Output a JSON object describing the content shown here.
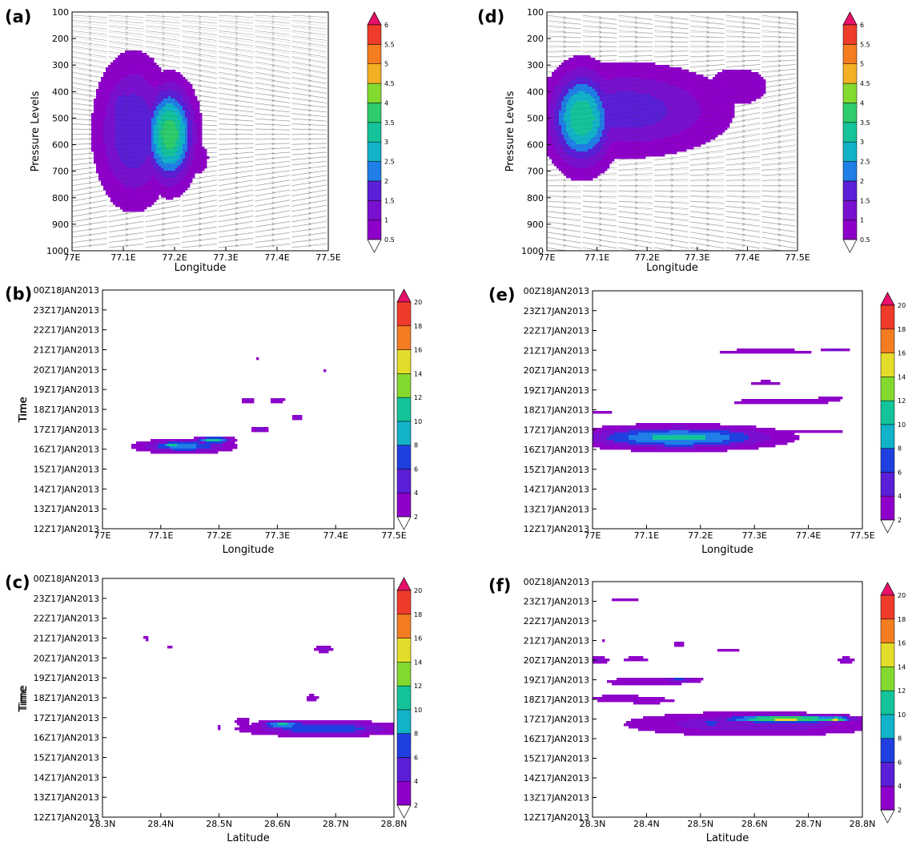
{
  "colors": {
    "contour_scale": [
      "#8e00c9",
      "#7a10cf",
      "#5a1fd6",
      "#1f3fe0",
      "#1f7fe6",
      "#12b2c9",
      "#14c39a",
      "#2fcc6b",
      "#84d92e",
      "#e3dc2a",
      "#f4b024",
      "#f47c21",
      "#ee3b2a",
      "#e8106a"
    ],
    "streamline": "#222222"
  },
  "chart_data": [
    {
      "panel": "(a)",
      "type": "heatmap",
      "xlabel": "Longitude",
      "ylabel": "Pressure Levels",
      "xticks": [
        "77E",
        "77.1E",
        "77.2E",
        "77.3E",
        "77.4E",
        "77.5E"
      ],
      "yticks": [
        "100",
        "200",
        "300",
        "400",
        "500",
        "600",
        "700",
        "800",
        "900",
        "1000"
      ],
      "xlim": [
        77.0,
        77.5
      ],
      "ylim": [
        1000,
        100
      ],
      "colorbar_ticks": [
        "0.5",
        "1",
        "1.5",
        "2",
        "2.5",
        "3",
        "3.5",
        "4",
        "4.5",
        "5",
        "5.5",
        "6"
      ],
      "overlay": "streamlines",
      "blobs": [
        {
          "x": 77.12,
          "y": 550,
          "sx": 0.07,
          "sy": 260,
          "peak": 2.0
        },
        {
          "x": 77.19,
          "y": 560,
          "sx": 0.045,
          "sy": 170,
          "peak": 3.9
        },
        {
          "x": 77.1,
          "y": 470,
          "sx": 0.03,
          "sy": 110,
          "peak": 2.0
        },
        {
          "x": 77.24,
          "y": 650,
          "sx": 0.03,
          "sy": 70,
          "peak": 1.0
        }
      ]
    },
    {
      "panel": "(b)",
      "type": "heatmap",
      "xlabel": "Longitude",
      "ylabel": "Time",
      "xticks": [
        "77E",
        "77.1E",
        "77.2E",
        "77.3E",
        "77.4E",
        "77.5E"
      ],
      "yticks": [
        "12Z17JAN2013",
        "13Z17JAN2013",
        "14Z17JAN2013",
        "15Z17JAN2013",
        "16Z17JAN2013",
        "17Z17JAN2013",
        "18Z17JAN2013",
        "19Z17JAN2013",
        "20Z17JAN2013",
        "21Z17JAN2013",
        "22Z17JAN2013",
        "23Z17JAN2013",
        "00Z18JAN2013"
      ],
      "xlim": [
        77.0,
        77.5
      ],
      "ylim": [
        0,
        12
      ],
      "colorbar_ticks": [
        "2",
        "4",
        "6",
        "8",
        "10",
        "12",
        "14",
        "16",
        "18",
        "20"
      ],
      "blobs": [
        {
          "x": 77.14,
          "y": 4.15,
          "sx": 0.075,
          "sy": 0.32,
          "peak": 9.0
        },
        {
          "x": 77.12,
          "y": 4.2,
          "sx": 0.02,
          "sy": 0.2,
          "peak": 12.0
        },
        {
          "x": 77.19,
          "y": 4.45,
          "sx": 0.03,
          "sy": 0.18,
          "peak": 12.0
        },
        {
          "x": 77.27,
          "y": 5.0,
          "sx": 0.015,
          "sy": 0.18,
          "peak": 5.0
        },
        {
          "x": 77.25,
          "y": 6.45,
          "sx": 0.013,
          "sy": 0.14,
          "peak": 5.0
        },
        {
          "x": 77.3,
          "y": 6.45,
          "sx": 0.013,
          "sy": 0.14,
          "peak": 5.0
        },
        {
          "x": 77.335,
          "y": 5.6,
          "sx": 0.009,
          "sy": 0.15,
          "peak": 5.0
        },
        {
          "x": 77.265,
          "y": 8.5,
          "sx": 0.007,
          "sy": 0.1,
          "peak": 3.0
        },
        {
          "x": 77.38,
          "y": 8.0,
          "sx": 0.007,
          "sy": 0.09,
          "peak": 3.0
        }
      ]
    },
    {
      "panel": "(c)",
      "type": "heatmap",
      "xlabel": "Latitude",
      "ylabel": "Time",
      "xticks": [
        "28.3N",
        "28.4N",
        "28.5N",
        "28.6N",
        "28.7N",
        "28.8N"
      ],
      "yticks": [
        "12Z17JAN2013",
        "13Z17JAN2013",
        "14Z17JAN2013",
        "15Z17JAN2013",
        "16Z17JAN2013",
        "17Z17JAN2013",
        "18Z17JAN2013",
        "19Z17JAN2013",
        "20Z17JAN2013",
        "21Z17JAN2013",
        "22Z17JAN2013",
        "23Z17JAN2013",
        "00Z18JAN2013"
      ],
      "xlim": [
        28.3,
        28.8
      ],
      "ylim": [
        0,
        12
      ],
      "colorbar_ticks": [
        "2",
        "4",
        "6",
        "8",
        "10",
        "12",
        "14",
        "16",
        "18",
        "20"
      ],
      "blobs": [
        {
          "x": 28.68,
          "y": 4.45,
          "sx": 0.13,
          "sy": 0.36,
          "peak": 8.0
        },
        {
          "x": 28.61,
          "y": 4.65,
          "sx": 0.04,
          "sy": 0.2,
          "peak": 11.0
        },
        {
          "x": 28.54,
          "y": 4.8,
          "sx": 0.015,
          "sy": 0.25,
          "peak": 4.0
        },
        {
          "x": 28.5,
          "y": 4.5,
          "sx": 0.008,
          "sy": 0.15,
          "peak": 2.5
        },
        {
          "x": 28.66,
          "y": 6.0,
          "sx": 0.013,
          "sy": 0.18,
          "peak": 4.0
        },
        {
          "x": 28.68,
          "y": 8.45,
          "sx": 0.017,
          "sy": 0.16,
          "peak": 5.0
        },
        {
          "x": 28.375,
          "y": 9.0,
          "sx": 0.008,
          "sy": 0.15,
          "peak": 3.0
        },
        {
          "x": 28.415,
          "y": 8.6,
          "sx": 0.008,
          "sy": 0.12,
          "peak": 3.0
        }
      ]
    },
    {
      "panel": "(d)",
      "type": "heatmap",
      "xlabel": "Longitude",
      "ylabel": "Pressure Levels",
      "xticks": [
        "77E",
        "77.1E",
        "77.2E",
        "77.3E",
        "77.4E",
        "77.5E"
      ],
      "yticks": [
        "100",
        "200",
        "300",
        "400",
        "500",
        "600",
        "700",
        "800",
        "900",
        "1000"
      ],
      "xlim": [
        77.0,
        77.5
      ],
      "ylim": [
        1000,
        100
      ],
      "colorbar_ticks": [
        "0.5",
        "1",
        "1.5",
        "2",
        "2.5",
        "3",
        "3.5",
        "4",
        "4.5",
        "5",
        "5.5",
        "6"
      ],
      "overlay": "streamlines",
      "blobs": [
        {
          "x": 77.16,
          "y": 470,
          "sx": 0.19,
          "sy": 160,
          "peak": 1.8
        },
        {
          "x": 77.38,
          "y": 380,
          "sx": 0.07,
          "sy": 80,
          "peak": 1.0
        },
        {
          "x": 77.07,
          "y": 500,
          "sx": 0.06,
          "sy": 170,
          "peak": 3.5
        },
        {
          "x": 77.05,
          "y": 460,
          "sx": 0.02,
          "sy": 80,
          "peak": 3.0
        },
        {
          "x": 77.11,
          "y": 480,
          "sx": 0.03,
          "sy": 100,
          "peak": 1.5
        }
      ]
    },
    {
      "panel": "(e)",
      "type": "heatmap",
      "xlabel": "Longitude",
      "ylabel": "Time",
      "xticks": [
        "77E",
        "77.1E",
        "77.2E",
        "77.3E",
        "77.4E",
        "77.5E"
      ],
      "yticks": [
        "12Z17JAN2013",
        "13Z17JAN2013",
        "14Z17JAN2013",
        "15Z17JAN2013",
        "16Z17JAN2013",
        "17Z17JAN2013",
        "18Z17JAN2013",
        "19Z17JAN2013",
        "20Z17JAN2013",
        "21Z17JAN2013",
        "22Z17JAN2013",
        "23Z17JAN2013",
        "00Z18JAN2013"
      ],
      "xlim": [
        77.0,
        77.5
      ],
      "ylim": [
        0,
        12
      ],
      "colorbar_ticks": [
        "2",
        "4",
        "6",
        "8",
        "10",
        "12",
        "14",
        "16",
        "18",
        "20"
      ],
      "blobs": [
        {
          "x": 77.16,
          "y": 4.6,
          "sx": 0.17,
          "sy": 0.55,
          "peak": 11.0
        },
        {
          "x": 77.16,
          "y": 4.9,
          "sx": 0.05,
          "sy": 0.13,
          "peak": 9.0
        },
        {
          "x": 77.04,
          "y": 4.5,
          "sx": 0.02,
          "sy": 0.2,
          "peak": 7.0
        },
        {
          "x": 77.4,
          "y": 4.9,
          "sx": 0.1,
          "sy": 0.15,
          "peak": 3.0
        },
        {
          "x": 77.0,
          "y": 5.9,
          "sx": 0.06,
          "sy": 0.12,
          "peak": 3.0
        },
        {
          "x": 77.35,
          "y": 6.4,
          "sx": 0.12,
          "sy": 0.2,
          "peak": 3.5
        },
        {
          "x": 77.33,
          "y": 6.5,
          "sx": 0.02,
          "sy": 0.1,
          "peak": 3.0
        },
        {
          "x": 77.44,
          "y": 6.55,
          "sx": 0.025,
          "sy": 0.12,
          "peak": 5.0
        },
        {
          "x": 77.32,
          "y": 7.35,
          "sx": 0.04,
          "sy": 0.18,
          "peak": 3.0
        },
        {
          "x": 77.32,
          "y": 8.95,
          "sx": 0.15,
          "sy": 0.15,
          "peak": 3.0
        },
        {
          "x": 77.45,
          "y": 9.05,
          "sx": 0.03,
          "sy": 0.1,
          "peak": 5.0
        }
      ]
    },
    {
      "panel": "(f)",
      "type": "heatmap",
      "xlabel": "Latitude",
      "ylabel": "Time",
      "xticks": [
        "28.3N",
        "28.4N",
        "28.5N",
        "28.6N",
        "28.7N",
        "28.8N"
      ],
      "yticks": [
        "12Z17JAN2013",
        "13Z17JAN2013",
        "14Z17JAN2013",
        "15Z17JAN2013",
        "16Z17JAN2013",
        "17Z17JAN2013",
        "18Z17JAN2013",
        "19Z17JAN2013",
        "20Z17JAN2013",
        "21Z17JAN2013",
        "22Z17JAN2013",
        "23Z17JAN2013",
        "00Z18JAN2013"
      ],
      "xlim": [
        28.3,
        28.8
      ],
      "ylim": [
        0,
        12
      ],
      "colorbar_ticks": [
        "2",
        "4",
        "6",
        "8",
        "10",
        "12",
        "14",
        "16",
        "18",
        "20"
      ],
      "blobs": [
        {
          "x": 28.6,
          "y": 4.75,
          "sx": 0.23,
          "sy": 0.6,
          "peak": 6.0
        },
        {
          "x": 28.66,
          "y": 5.0,
          "sx": 0.12,
          "sy": 0.2,
          "peak": 15.0
        },
        {
          "x": 28.75,
          "y": 5.0,
          "sx": 0.03,
          "sy": 0.12,
          "peak": 16.0
        },
        {
          "x": 28.52,
          "y": 4.8,
          "sx": 0.02,
          "sy": 0.18,
          "peak": 8.0
        },
        {
          "x": 28.4,
          "y": 6.9,
          "sx": 0.1,
          "sy": 0.28,
          "peak": 3.5
        },
        {
          "x": 28.46,
          "y": 7.0,
          "sx": 0.04,
          "sy": 0.14,
          "peak": 7.0
        },
        {
          "x": 28.4,
          "y": 5.95,
          "sx": 0.06,
          "sy": 0.18,
          "peak": 4.0
        },
        {
          "x": 28.35,
          "y": 6.05,
          "sx": 0.06,
          "sy": 0.22,
          "peak": 4.0
        },
        {
          "x": 28.38,
          "y": 8.05,
          "sx": 0.03,
          "sy": 0.14,
          "peak": 4.0
        },
        {
          "x": 28.31,
          "y": 8.0,
          "sx": 0.02,
          "sy": 0.2,
          "peak": 5.0
        },
        {
          "x": 28.46,
          "y": 8.8,
          "sx": 0.015,
          "sy": 0.2,
          "peak": 3.0
        },
        {
          "x": 28.55,
          "y": 8.5,
          "sx": 0.025,
          "sy": 0.12,
          "peak": 4.0
        },
        {
          "x": 28.77,
          "y": 8.0,
          "sx": 0.017,
          "sy": 0.16,
          "peak": 5.0
        },
        {
          "x": 28.36,
          "y": 11.05,
          "sx": 0.03,
          "sy": 0.1,
          "peak": 4.0
        },
        {
          "x": 28.32,
          "y": 9.0,
          "sx": 0.006,
          "sy": 0.08,
          "peak": 2.5
        }
      ]
    }
  ]
}
